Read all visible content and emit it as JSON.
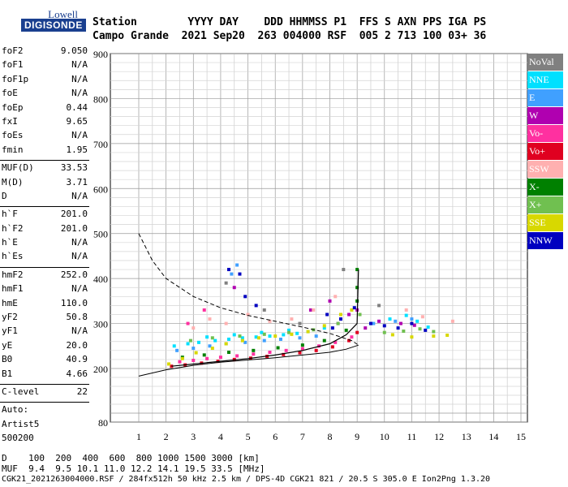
{
  "logo": {
    "line1": "Lowell",
    "line2": "DIGISONDE"
  },
  "header": {
    "row1": "Station        YYYY DAY    DDD HHMMSS P1  FFS S AXN PPS IGA PS",
    "row2": "Campo Grande  2021 Sep20  263 004000 RSF  005 2 713 100 03+ 36"
  },
  "params": [
    {
      "k": "foF2",
      "v": "9.050"
    },
    {
      "k": "foF1",
      "v": "N/A"
    },
    {
      "k": "foF1p",
      "v": "N/A"
    },
    {
      "k": "foE",
      "v": "N/A"
    },
    {
      "k": "foEp",
      "v": "0.44"
    },
    {
      "k": "fxI",
      "v": "9.65"
    },
    {
      "k": "foEs",
      "v": "N/A"
    },
    {
      "k": "fmin",
      "v": "1.95"
    },
    {
      "sep": true
    },
    {
      "k": "MUF(D)",
      "v": "33.53"
    },
    {
      "k": "M(D)",
      "v": "3.71"
    },
    {
      "k": "D",
      "v": "N/A"
    },
    {
      "sep": true
    },
    {
      "k": "h`F",
      "v": "201.0"
    },
    {
      "k": "h`F2",
      "v": "201.0"
    },
    {
      "k": "h`E",
      "v": "N/A"
    },
    {
      "k": "h`Es",
      "v": "N/A"
    },
    {
      "sep": true
    },
    {
      "k": "hmF2",
      "v": "252.0"
    },
    {
      "k": "hmF1",
      "v": "N/A"
    },
    {
      "k": "hmE",
      "v": "110.0"
    },
    {
      "k": "yF2",
      "v": "50.8"
    },
    {
      "k": "yF1",
      "v": "N/A"
    },
    {
      "k": "yE",
      "v": "20.0"
    },
    {
      "k": "B0",
      "v": "40.9"
    },
    {
      "k": "B1",
      "v": "4.66"
    },
    {
      "sep": true
    },
    {
      "k": "C-level",
      "v": "22"
    },
    {
      "sep": true
    },
    {
      "k": "Auto:",
      "v": ""
    },
    {
      "k": "Artist5",
      "v": ""
    },
    {
      "k": "500200",
      "v": ""
    }
  ],
  "legend": [
    {
      "label": "NoVal",
      "color": "#808080"
    },
    {
      "label": "NNE",
      "color": "#00e0ff"
    },
    {
      "label": "E",
      "color": "#40a0ff"
    },
    {
      "label": "W",
      "color": "#b000b0"
    },
    {
      "label": "Vo-",
      "color": "#ff30a0"
    },
    {
      "label": "Vo+",
      "color": "#e00020"
    },
    {
      "label": "SSW",
      "color": "#ffb0b0"
    },
    {
      "label": "X-",
      "color": "#008000"
    },
    {
      "label": "X+",
      "color": "#70c050"
    },
    {
      "label": "SSE",
      "color": "#d8d800"
    },
    {
      "label": "NNW",
      "color": "#0000c0"
    }
  ],
  "footer": {
    "line1": "D    100  200  400  600  800 1000 1500 3000 [km]",
    "line2": "MUF  9.4  9.5 10.1 11.0 12.2 14.1 19.5 33.5 [MHz]",
    "line3": "CGK21_2021263004000.RSF / 284fx512h 50 kHz 2.5 km / DPS-4D CGK21 821 / 20.5 S 305.0 E Ion2Png 1.3.20"
  },
  "chart_data": {
    "type": "scatter",
    "xlim": [
      1,
      15
    ],
    "ylim": [
      80,
      900
    ],
    "x_ticks": [
      1,
      2,
      3,
      4,
      5,
      6,
      7,
      8,
      9,
      10,
      11,
      12,
      13,
      14,
      15
    ],
    "y_ticks": [
      80,
      200,
      300,
      400,
      500,
      600,
      700,
      800,
      900
    ],
    "grid": true,
    "series": [
      {
        "name": "NNE",
        "color": "#00e0ff",
        "points": [
          [
            2.3,
            250
          ],
          [
            2.8,
            255
          ],
          [
            3.2,
            258
          ],
          [
            3.8,
            262
          ],
          [
            4.3,
            265
          ],
          [
            4.8,
            268
          ],
          [
            5.3,
            270
          ],
          [
            5.8,
            272
          ],
          [
            6.3,
            275
          ],
          [
            6.8,
            278
          ],
          [
            7.2,
            282
          ],
          [
            7.8,
            290
          ],
          [
            10.2,
            310
          ],
          [
            10.8,
            318
          ],
          [
            11.2,
            305
          ],
          [
            11.6,
            292
          ],
          [
            3.5,
            270
          ],
          [
            4.5,
            275
          ],
          [
            5.5,
            280
          ],
          [
            6.5,
            285
          ]
        ]
      },
      {
        "name": "E",
        "color": "#40a0ff",
        "points": [
          [
            2.4,
            240
          ],
          [
            3.0,
            245
          ],
          [
            3.6,
            250
          ],
          [
            4.2,
            255
          ],
          [
            4.9,
            258
          ],
          [
            5.6,
            262
          ],
          [
            6.2,
            265
          ],
          [
            6.9,
            268
          ],
          [
            7.5,
            272
          ],
          [
            9.6,
            300
          ],
          [
            10.4,
            305
          ],
          [
            11.0,
            310
          ],
          [
            4.6,
            430
          ],
          [
            4.4,
            410
          ]
        ]
      },
      {
        "name": "W",
        "color": "#b000b0",
        "points": [
          [
            8.3,
            300
          ],
          [
            8.7,
            320
          ],
          [
            9.0,
            330
          ],
          [
            9.3,
            290
          ],
          [
            9.8,
            305
          ],
          [
            10.6,
            300
          ],
          [
            11.1,
            296
          ],
          [
            4.5,
            380
          ],
          [
            7.3,
            330
          ],
          [
            8.0,
            350
          ]
        ]
      },
      {
        "name": "Vo-",
        "color": "#ff30a0",
        "points": [
          [
            2.5,
            215
          ],
          [
            3.0,
            218
          ],
          [
            3.5,
            222
          ],
          [
            4.0,
            225
          ],
          [
            4.6,
            228
          ],
          [
            5.2,
            232
          ],
          [
            5.8,
            236
          ],
          [
            6.4,
            240
          ],
          [
            7.0,
            244
          ],
          [
            7.6,
            250
          ],
          [
            8.2,
            258
          ],
          [
            8.8,
            270
          ],
          [
            2.8,
            300
          ],
          [
            3.4,
            330
          ]
        ]
      },
      {
        "name": "Vo+",
        "color": "#e00020",
        "points": [
          [
            2.2,
            205
          ],
          [
            2.7,
            208
          ],
          [
            3.3,
            212
          ],
          [
            3.9,
            216
          ],
          [
            4.5,
            220
          ],
          [
            5.1,
            223
          ],
          [
            5.7,
            227
          ],
          [
            6.3,
            231
          ],
          [
            6.9,
            235
          ],
          [
            7.5,
            240
          ],
          [
            8.1,
            248
          ],
          [
            8.7,
            262
          ],
          [
            9.0,
            280
          ]
        ]
      },
      {
        "name": "SSW",
        "color": "#ffb0b0",
        "points": [
          [
            3.0,
            290
          ],
          [
            3.6,
            310
          ],
          [
            4.2,
            300
          ],
          [
            5.0,
            320
          ],
          [
            5.8,
            305
          ],
          [
            6.6,
            310
          ],
          [
            7.4,
            330
          ],
          [
            8.2,
            360
          ],
          [
            10.8,
            330
          ],
          [
            11.4,
            315
          ],
          [
            12.5,
            305
          ]
        ]
      },
      {
        "name": "X-",
        "color": "#008000",
        "points": [
          [
            2.6,
            225
          ],
          [
            3.4,
            230
          ],
          [
            4.3,
            236
          ],
          [
            5.2,
            240
          ],
          [
            6.1,
            246
          ],
          [
            7.0,
            252
          ],
          [
            7.8,
            262
          ],
          [
            8.6,
            285
          ],
          [
            9.0,
            420
          ],
          [
            9.0,
            380
          ],
          [
            9.0,
            350
          ]
        ]
      },
      {
        "name": "X+",
        "color": "#70c050",
        "points": [
          [
            2.9,
            262
          ],
          [
            3.7,
            268
          ],
          [
            4.7,
            272
          ],
          [
            5.6,
            276
          ],
          [
            6.5,
            280
          ],
          [
            7.4,
            286
          ],
          [
            8.3,
            300
          ],
          [
            9.1,
            320
          ],
          [
            10.0,
            280
          ],
          [
            10.7,
            283
          ],
          [
            11.3,
            288
          ],
          [
            11.8,
            282
          ]
        ]
      },
      {
        "name": "SSE",
        "color": "#d8d800",
        "points": [
          [
            2.1,
            210
          ],
          [
            2.6,
            222
          ],
          [
            3.1,
            235
          ],
          [
            3.7,
            245
          ],
          [
            4.2,
            255
          ],
          [
            4.8,
            262
          ],
          [
            5.4,
            268
          ],
          [
            6.0,
            272
          ],
          [
            6.6,
            276
          ],
          [
            7.2,
            282
          ],
          [
            7.8,
            295
          ],
          [
            8.4,
            320
          ],
          [
            8.8,
            330
          ],
          [
            10.3,
            275
          ],
          [
            11.0,
            270
          ],
          [
            11.8,
            272
          ],
          [
            12.3,
            274
          ]
        ]
      },
      {
        "name": "NNW",
        "color": "#0000c0",
        "points": [
          [
            4.3,
            420
          ],
          [
            4.7,
            410
          ],
          [
            4.9,
            360
          ],
          [
            5.3,
            340
          ],
          [
            8.4,
            310
          ],
          [
            8.9,
            335
          ],
          [
            9.5,
            300
          ],
          [
            10.0,
            295
          ],
          [
            10.5,
            290
          ],
          [
            11.0,
            300
          ],
          [
            11.5,
            285
          ],
          [
            7.9,
            320
          ],
          [
            8.1,
            290
          ]
        ]
      },
      {
        "name": "NoVal",
        "color": "#808080",
        "points": [
          [
            4.2,
            390
          ],
          [
            5.6,
            330
          ],
          [
            6.9,
            300
          ],
          [
            8.5,
            420
          ],
          [
            9.8,
            340
          ]
        ]
      }
    ],
    "profile_curve": [
      [
        1,
        183
      ],
      [
        2,
        197
      ],
      [
        3,
        207
      ],
      [
        4,
        214
      ],
      [
        5,
        219
      ],
      [
        6,
        224
      ],
      [
        7,
        230
      ],
      [
        8,
        236
      ],
      [
        8.6,
        243
      ],
      [
        9.05,
        252
      ]
    ],
    "dashed_curve": [
      [
        1,
        500
      ],
      [
        1.5,
        440
      ],
      [
        2,
        400
      ],
      [
        3,
        360
      ],
      [
        4,
        335
      ],
      [
        5,
        318
      ],
      [
        6,
        305
      ],
      [
        7,
        292
      ],
      [
        8,
        278
      ],
      [
        8.8,
        262
      ],
      [
        9.05,
        252
      ]
    ],
    "trace_line": [
      [
        2.2,
        205
      ],
      [
        3,
        210
      ],
      [
        4,
        216
      ],
      [
        5,
        222
      ],
      [
        6,
        230
      ],
      [
        7,
        240
      ],
      [
        8,
        255
      ],
      [
        8.6,
        275
      ],
      [
        9.0,
        300
      ],
      [
        9.05,
        420
      ]
    ]
  }
}
